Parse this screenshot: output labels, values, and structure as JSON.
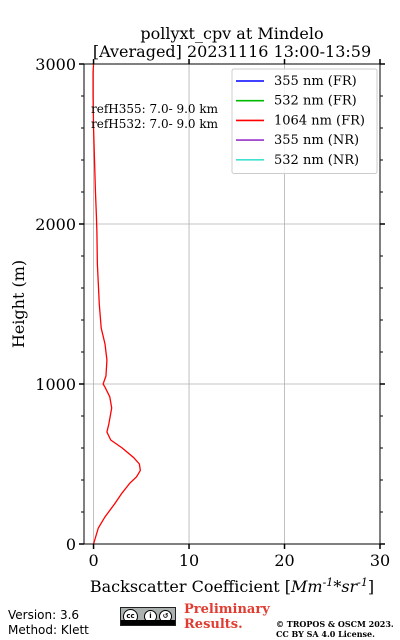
{
  "chart_data": {
    "type": "line",
    "title_line1": "pollyxt_cpv at Mindelo",
    "title_line2": "[Averaged] 20231116 13:00-13:59",
    "xlabel_prefix": "Backscatter Coefficient [",
    "xlabel_math": "Mm^{-1}*sr^{-1}",
    "xlabel_suffix": "]",
    "ylabel": "Height (m)",
    "xlim": [
      -1,
      30
    ],
    "ylim": [
      0,
      3000
    ],
    "xticks": [
      0,
      10,
      20,
      30
    ],
    "yticks": [
      0,
      1000,
      2000,
      3000
    ],
    "grid": true,
    "legend_position": "top-right",
    "annotations": [
      "refH355:  7.0- 9.0 km",
      "refH532:  7.0- 9.0 km"
    ],
    "series": [
      {
        "name": "355 nm (FR)",
        "color": "#0000ff",
        "x": [],
        "y": []
      },
      {
        "name": "532 nm (FR)",
        "color": "#00bb00",
        "x": [],
        "y": []
      },
      {
        "name": "1064 nm (FR)",
        "color": "#ff0000",
        "x": [
          0.0,
          0.5,
          1.2,
          2.2,
          3.0,
          3.8,
          4.5,
          4.9,
          4.8,
          4.2,
          3.0,
          1.8,
          1.4,
          1.6,
          1.9,
          1.7,
          1.2,
          1.0,
          1.3,
          1.4,
          1.2,
          0.8,
          0.6,
          0.4,
          0.35,
          0.3,
          0.2,
          0.1,
          0.0,
          -0.05,
          -0.05,
          0.0
        ],
        "y": [
          0,
          100,
          170,
          250,
          320,
          380,
          420,
          460,
          500,
          540,
          600,
          650,
          700,
          750,
          850,
          920,
          980,
          1000,
          1050,
          1150,
          1250,
          1350,
          1500,
          1750,
          1950,
          2050,
          2200,
          2400,
          2600,
          2800,
          2950,
          3000
        ]
      },
      {
        "name": "355 nm (NR)",
        "color": "#9932cc",
        "x": [],
        "y": []
      },
      {
        "name": "532 nm (NR)",
        "color": "#40e0d0",
        "x": [],
        "y": []
      }
    ]
  },
  "footer": {
    "version": "Version: 3.6",
    "method": "Method: Klett",
    "preliminary_line1": "Preliminary",
    "preliminary_line2": "Results.",
    "copyright_line1": "© TROPOS & OSCM 2023.",
    "copyright_line2": "CC BY SA 4.0 License.",
    "cc_logo": "cc-by-sa-icon"
  }
}
